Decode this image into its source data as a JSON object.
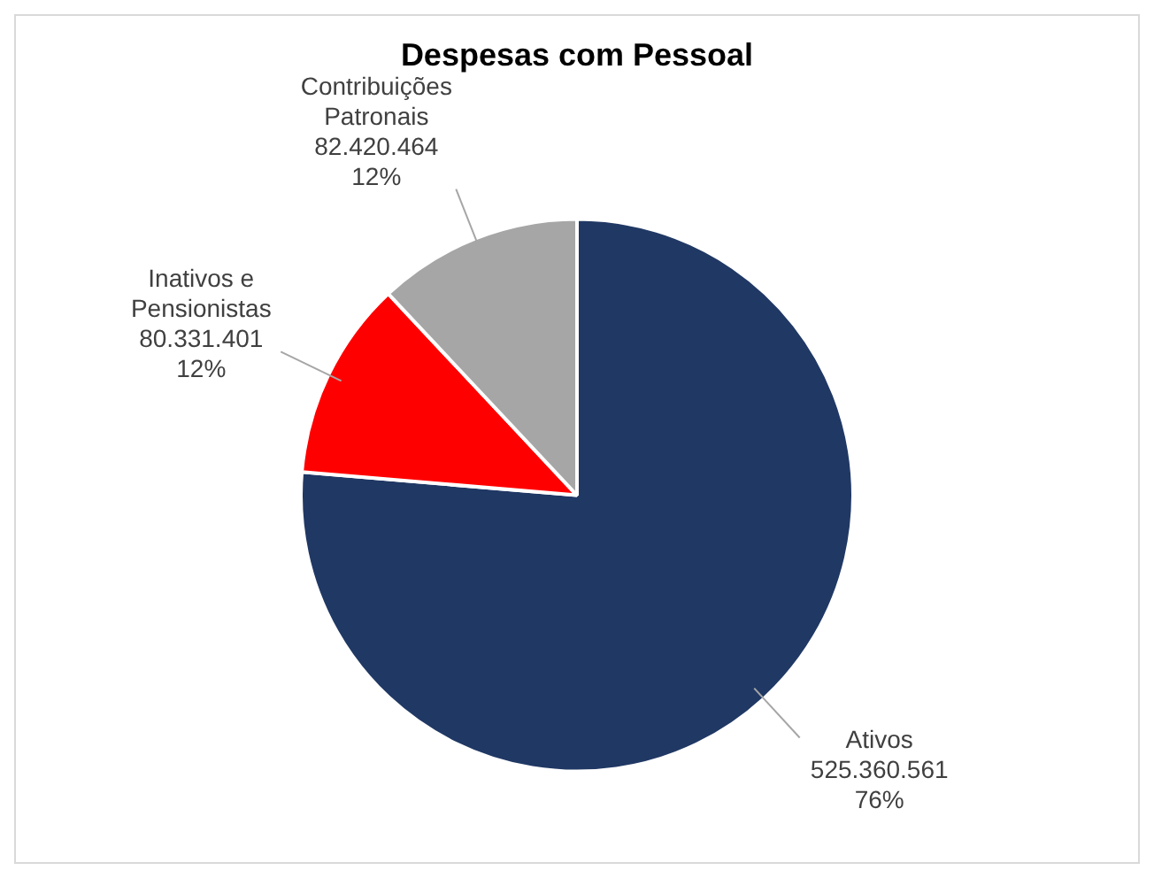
{
  "chart_data": {
    "type": "pie",
    "title": "Despesas com Pessoal",
    "categories": [
      "Ativos",
      "Inativos e Pensionistas",
      "Contribuições Patronais"
    ],
    "values": [
      525360561,
      80331401,
      82420464
    ],
    "colors": [
      "#203864",
      "#ff0000",
      "#a6a6a6"
    ],
    "value_labels": [
      "525.360.561\n76%",
      "80.331.401\n12%",
      "82.420.464\n12%"
    ],
    "legend": false
  }
}
